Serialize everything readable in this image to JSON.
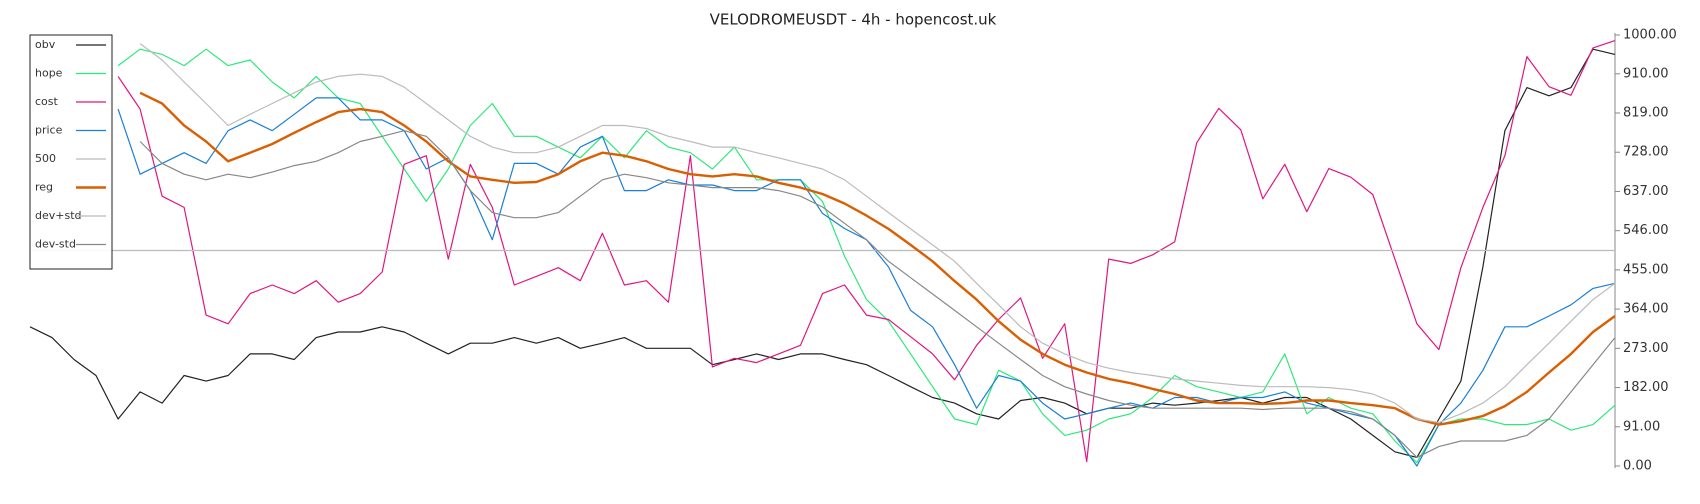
{
  "chart_data": {
    "type": "line",
    "title": "VELODROMEUSDT - 4h - hopencost.uk",
    "ylim": [
      0,
      1000
    ],
    "yticks": [
      {
        "value": 0,
        "label": "0.00"
      },
      {
        "value": 91,
        "label": "91.00"
      },
      {
        "value": 182,
        "label": "182.00"
      },
      {
        "value": 273,
        "label": "273.00"
      },
      {
        "value": 364,
        "label": "364.00"
      },
      {
        "value": 455,
        "label": "455.00"
      },
      {
        "value": 546,
        "label": "546.00"
      },
      {
        "value": 637,
        "label": "637.00"
      },
      {
        "value": 728,
        "label": "728.00"
      },
      {
        "value": 819,
        "label": "819.00"
      },
      {
        "value": 910,
        "label": "910.00"
      },
      {
        "value": 1000,
        "label": "1000.00"
      }
    ],
    "legend": "upper left",
    "series": [
      {
        "name": "obv",
        "color": "#222222",
        "width": 1.2,
        "values": [
          323,
          298,
          247,
          210,
          109,
          172,
          146,
          210,
          197,
          210,
          260,
          260,
          247,
          298,
          311,
          311,
          323,
          311,
          285,
          260,
          285,
          285,
          298,
          285,
          298,
          273,
          285,
          298,
          273,
          273,
          273,
          235,
          247,
          260,
          247,
          260,
          260,
          247,
          235,
          210,
          184,
          159,
          146,
          121,
          109,
          152,
          159,
          146,
          121,
          134,
          134,
          146,
          141,
          146,
          152,
          159,
          146,
          159,
          159,
          134,
          109,
          71,
          33,
          20,
          109,
          197,
          462,
          778,
          878,
          859,
          878,
          967,
          955
        ]
      },
      {
        "name": "hope",
        "color": "#2ee87a",
        "width": 1.2,
        "values": [
          null,
          null,
          null,
          null,
          929,
          967,
          955,
          929,
          967,
          929,
          942,
          891,
          854,
          904,
          854,
          841,
          765,
          689,
          614,
          689,
          790,
          841,
          765,
          765,
          740,
          715,
          765,
          715,
          778,
          740,
          727,
          689,
          740,
          664,
          664,
          664,
          614,
          487,
          386,
          336,
          260,
          184,
          109,
          96,
          222,
          197,
          121,
          71,
          83,
          109,
          121,
          159,
          210,
          184,
          172,
          159,
          172,
          260,
          121,
          159,
          134,
          121,
          58,
          8,
          96,
          109,
          109,
          96,
          96,
          109,
          83,
          96,
          141
        ]
      },
      {
        "name": "cost",
        "color": "#e0167f",
        "width": 1.2,
        "values": [
          null,
          null,
          null,
          null,
          904,
          828,
          626,
          600,
          350,
          330,
          400,
          420,
          400,
          430,
          380,
          400,
          450,
          700,
          720,
          480,
          700,
          600,
          420,
          440,
          460,
          430,
          540,
          420,
          430,
          380,
          720,
          230,
          250,
          240,
          260,
          280,
          400,
          420,
          350,
          340,
          300,
          260,
          200,
          280,
          340,
          390,
          250,
          330,
          10,
          480,
          470,
          490,
          520,
          750,
          830,
          780,
          620,
          700,
          590,
          690,
          670,
          630,
          480,
          330,
          270,
          460,
          600,
          720,
          950,
          880,
          860,
          970,
          987
        ]
      },
      {
        "name": "price",
        "color": "#1a7fd6",
        "width": 1.2,
        "values": [
          null,
          null,
          null,
          null,
          828,
          677,
          702,
          727,
          702,
          778,
          803,
          778,
          816,
          854,
          854,
          803,
          803,
          778,
          689,
          715,
          639,
          525,
          702,
          702,
          677,
          740,
          765,
          639,
          639,
          664,
          652,
          652,
          639,
          639,
          664,
          664,
          586,
          551,
          525,
          462,
          361,
          323,
          235,
          134,
          210,
          197,
          146,
          109,
          121,
          134,
          146,
          134,
          159,
          159,
          146,
          159,
          159,
          172,
          146,
          134,
          121,
          109,
          71,
          0,
          96,
          146,
          222,
          323,
          323,
          348,
          374,
          412,
          424
        ]
      },
      {
        "name": "500",
        "color": "#bbbbbb",
        "width": 1.2,
        "values": [
          500,
          500,
          500,
          500,
          500,
          500,
          500,
          500,
          500,
          500,
          500,
          500,
          500,
          500,
          500,
          500,
          500,
          500,
          500,
          500,
          500,
          500,
          500,
          500,
          500,
          500,
          500,
          500,
          500,
          500,
          500,
          500,
          500,
          500,
          500,
          500,
          500,
          500,
          500,
          500,
          500,
          500,
          500,
          500,
          500,
          500,
          500,
          500,
          500,
          500,
          500,
          500,
          500,
          500,
          500,
          500,
          500,
          500,
          500,
          500,
          500,
          500,
          500,
          500,
          500,
          500,
          500,
          500,
          500,
          500,
          500,
          500,
          500
        ]
      },
      {
        "name": "reg",
        "color": "#d95f02",
        "width": 2.4,
        "values": [
          null,
          null,
          null,
          null,
          null,
          866,
          841,
          790,
          753,
          707,
          727,
          747,
          773,
          798,
          821,
          828,
          821,
          790,
          753,
          707,
          672,
          664,
          657,
          659,
          677,
          707,
          727,
          720,
          707,
          689,
          677,
          672,
          677,
          672,
          657,
          646,
          631,
          609,
          581,
          550,
          513,
          475,
          429,
          386,
          336,
          293,
          260,
          235,
          217,
          202,
          192,
          179,
          167,
          152,
          146,
          146,
          144,
          146,
          152,
          152,
          146,
          141,
          134,
          109,
          96,
          104,
          116,
          139,
          172,
          217,
          260,
          311,
          348
        ]
      },
      {
        "name": "dev+std",
        "color": "#bbbbbb",
        "width": 1.2,
        "values": [
          null,
          null,
          null,
          null,
          null,
          980,
          942,
          891,
          841,
          790,
          816,
          841,
          866,
          891,
          904,
          909,
          904,
          879,
          841,
          803,
          765,
          740,
          727,
          727,
          740,
          765,
          790,
          790,
          783,
          765,
          753,
          740,
          740,
          727,
          715,
          702,
          689,
          664,
          626,
          588,
          550,
          513,
          475,
          424,
          374,
          323,
          285,
          260,
          240,
          227,
          217,
          210,
          202,
          197,
          192,
          187,
          184,
          184,
          184,
          182,
          177,
          167,
          146,
          109,
          101,
          121,
          146,
          184,
          235,
          285,
          336,
          386,
          424
        ]
      },
      {
        "name": "dev-std",
        "color": "#888888",
        "width": 1.2,
        "values": [
          null,
          null,
          null,
          null,
          null,
          753,
          702,
          677,
          664,
          677,
          669,
          682,
          697,
          707,
          727,
          753,
          765,
          778,
          765,
          715,
          639,
          588,
          576,
          576,
          588,
          626,
          664,
          677,
          669,
          657,
          652,
          646,
          646,
          646,
          639,
          626,
          601,
          563,
          525,
          475,
          437,
          399,
          361,
          323,
          285,
          247,
          210,
          184,
          167,
          152,
          141,
          134,
          134,
          134,
          134,
          134,
          131,
          134,
          134,
          134,
          126,
          109,
          71,
          20,
          45,
          58,
          58,
          58,
          71,
          109,
          172,
          235,
          298
        ]
      }
    ]
  }
}
